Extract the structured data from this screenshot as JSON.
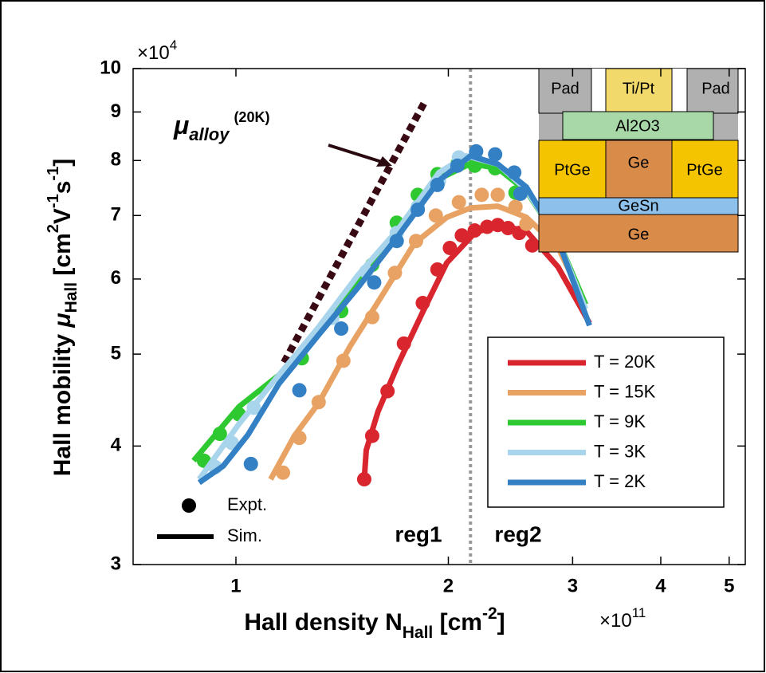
{
  "chart_data": {
    "type": "line",
    "xscale": "log",
    "yscale": "log",
    "xlim": [
      0.715,
      5.27
    ],
    "ylim": [
      3,
      10
    ],
    "xticks": [
      1,
      2,
      3,
      4,
      5
    ],
    "yticks": [
      3,
      4,
      5,
      6,
      7,
      8,
      9,
      10
    ],
    "x_multiplier": [
      "×10",
      "11"
    ],
    "y_multiplier": [
      "×10",
      "4"
    ],
    "xlabel": [
      "Hall density N",
      "Hall",
      " [cm",
      "-2",
      "]"
    ],
    "ylabel": [
      "Hall mobility ",
      "μ",
      "Hall",
      " [cm",
      "2",
      "V",
      "-1",
      "s",
      "-1",
      "]"
    ],
    "series": [
      {
        "name": "T = 20K",
        "color": "#d9262e",
        "expt": {
          "x": [
            1.52,
            1.56,
            1.64,
            1.73,
            1.84,
            1.93,
            2.01,
            2.09,
            2.18,
            2.27,
            2.35,
            2.43,
            2.52,
            2.63
          ],
          "y": [
            3.69,
            4.1,
            4.57,
            5.13,
            5.66,
            6.14,
            6.47,
            6.67,
            6.75,
            6.81,
            6.84,
            6.79,
            6.71,
            6.51
          ]
        },
        "sim": {
          "x": [
            1.52,
            1.53,
            1.59,
            1.7,
            1.84,
            1.99,
            2.18,
            2.35,
            2.58,
            2.86,
            3.17
          ],
          "y": [
            3.69,
            3.96,
            4.35,
            4.89,
            5.54,
            6.24,
            6.71,
            6.84,
            6.74,
            6.18,
            5.39
          ]
        }
      },
      {
        "name": "T = 15K",
        "color": "#e8a364",
        "expt": {
          "x": [
            1.166,
            1.23,
            1.31,
            1.42,
            1.56,
            1.68,
            1.8,
            1.92,
            2.07,
            2.23,
            2.35,
            2.49,
            2.58
          ],
          "y": [
            3.75,
            4.08,
            4.45,
            4.92,
            5.47,
            6.09,
            6.58,
            7.0,
            7.23,
            7.36,
            7.36,
            7.15,
            6.86
          ]
        },
        "sim": {
          "x": [
            1.12,
            1.21,
            1.31,
            1.45,
            1.61,
            1.79,
            1.99,
            2.15,
            2.35,
            2.58,
            2.86,
            3.13
          ],
          "y": [
            3.69,
            4.1,
            4.44,
            5.09,
            5.76,
            6.54,
            6.97,
            7.13,
            7.16,
            6.97,
            6.48,
            5.64
          ]
        }
      },
      {
        "name": "T = 9K",
        "color": "#2ec830",
        "expt": {
          "x": [
            0.901,
            0.949,
            1.01,
            1.24,
            1.41,
            1.56,
            1.69,
            1.81,
            1.93,
            2.06,
            2.18,
            2.33,
            2.49
          ],
          "y": [
            3.86,
            4.12,
            4.32,
            4.95,
            5.55,
            6.21,
            6.88,
            7.36,
            7.74,
            7.93,
            7.9,
            7.85,
            7.4
          ]
        },
        "sim": {
          "x": [
            0.871,
            1.01,
            1.15,
            1.31,
            1.49,
            1.7,
            1.94,
            2.15,
            2.35,
            2.58,
            2.86,
            3.13
          ],
          "y": [
            3.86,
            4.4,
            4.75,
            5.29,
            5.94,
            6.72,
            7.65,
            7.94,
            7.85,
            7.43,
            6.6,
            5.64
          ]
        }
      },
      {
        "name": "T = 3K",
        "color": "#a9d5ec",
        "expt": {
          "x": [
            0.935,
            0.987,
            1.06,
            1.37,
            1.53,
            1.69,
            1.81,
            1.94,
            2.07
          ],
          "y": [
            3.8,
            4.03,
            4.39,
            5.46,
            6.11,
            6.71,
            7.15,
            7.61,
            8.06
          ]
        },
        "sim": {
          "x": [
            0.887,
            1.01,
            1.15,
            1.31,
            1.49,
            1.7,
            1.94,
            2.12,
            2.35,
            2.58,
            2.86,
            3.13
          ],
          "y": [
            3.69,
            4.22,
            4.75,
            5.34,
            6.06,
            6.78,
            7.77,
            8.09,
            7.93,
            7.45,
            6.6,
            5.58
          ]
        }
      },
      {
        "name": "T = 2K",
        "color": "#3480c4",
        "expt": {
          "x": [
            1.05,
            1.23,
            1.41,
            1.57,
            1.69,
            1.81,
            1.93,
            2.06,
            2.19,
            2.33,
            2.48,
            2.53
          ],
          "y": [
            3.83,
            4.58,
            5.32,
            5.95,
            6.58,
            7.1,
            7.54,
            7.9,
            8.18,
            8.12,
            7.77,
            7.38
          ]
        },
        "sim": {
          "x": [
            0.887,
            0.959,
            1.04,
            1.15,
            1.31,
            1.49,
            1.7,
            1.94,
            2.15,
            2.35,
            2.58,
            2.86,
            3.17
          ],
          "y": [
            3.66,
            3.81,
            4.11,
            4.65,
            5.24,
            5.88,
            6.67,
            7.62,
            8.09,
            7.93,
            7.5,
            6.6,
            5.36
          ]
        }
      }
    ],
    "marker_legend": [
      "Expt.",
      "Sim."
    ],
    "alloy_line": {
      "x": [
        1.17,
        1.86
      ],
      "y": [
        4.9,
        9.28
      ],
      "color": "#3a0a14"
    },
    "annotation": [
      "μ",
      "alloy",
      "(20K)"
    ],
    "divider_x": 2.15,
    "regions": [
      "reg1",
      "reg2"
    ],
    "inset": [
      "Pad",
      "Ti/Pt",
      "Pad",
      "Al2O3",
      "PtGe",
      "Ge",
      "PtGe",
      "GeSn",
      "Ge"
    ]
  }
}
